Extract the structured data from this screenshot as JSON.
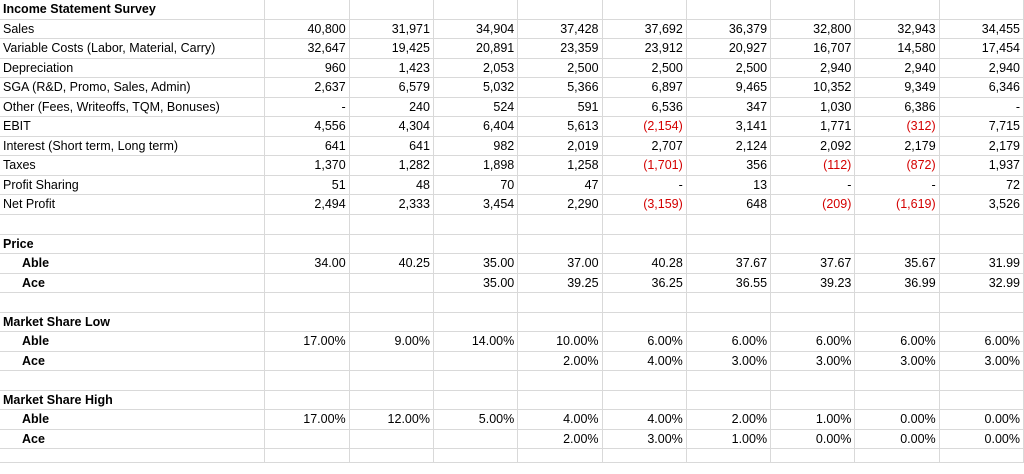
{
  "title": "Income Statement Survey",
  "colors": {
    "negative": "#d40000",
    "gridline": "#d9d9d9"
  },
  "income_rows": [
    {
      "label": "Sales",
      "values": [
        "40,800",
        "31,971",
        "34,904",
        "37,428",
        "37,692",
        "36,379",
        "32,800",
        "32,943",
        "34,455"
      ]
    },
    {
      "label": "Variable Costs (Labor, Material, Carry)",
      "values": [
        "32,647",
        "19,425",
        "20,891",
        "23,359",
        "23,912",
        "20,927",
        "16,707",
        "14,580",
        "17,454"
      ]
    },
    {
      "label": "Depreciation",
      "values": [
        "960",
        "1,423",
        "2,053",
        "2,500",
        "2,500",
        "2,500",
        "2,940",
        "2,940",
        "2,940"
      ]
    },
    {
      "label": "SGA (R&D, Promo, Sales, Admin)",
      "values": [
        "2,637",
        "6,579",
        "5,032",
        "5,366",
        "6,897",
        "9,465",
        "10,352",
        "9,349",
        "6,346"
      ]
    },
    {
      "label": "Other (Fees, Writeoffs, TQM, Bonuses)",
      "values": [
        "-",
        "240",
        "524",
        "591",
        "6,536",
        "347",
        "1,030",
        "6,386",
        "-"
      ]
    },
    {
      "label": "EBIT",
      "values": [
        "4,556",
        "4,304",
        "6,404",
        "5,613",
        "(2,154)",
        "3,141",
        "1,771",
        "(312)",
        "7,715"
      ]
    },
    {
      "label": "Interest (Short term, Long term)",
      "values": [
        "641",
        "641",
        "982",
        "2,019",
        "2,707",
        "2,124",
        "2,092",
        "2,179",
        "2,179"
      ]
    },
    {
      "label": "Taxes",
      "values": [
        "1,370",
        "1,282",
        "1,898",
        "1,258",
        "(1,701)",
        "356",
        "(112)",
        "(872)",
        "1,937"
      ]
    },
    {
      "label": "Profit Sharing",
      "values": [
        "51",
        "48",
        "70",
        "47",
        "-",
        "13",
        "-",
        "-",
        "72"
      ]
    },
    {
      "label": "Net Profit",
      "values": [
        "2,494",
        "2,333",
        "3,454",
        "2,290",
        "(3,159)",
        "648",
        "(209)",
        "(1,619)",
        "3,526"
      ]
    }
  ],
  "price": {
    "header": "Price",
    "rows": [
      {
        "label": "Able",
        "values": [
          "34.00",
          "40.25",
          "35.00",
          "37.00",
          "40.28",
          "37.67",
          "37.67",
          "35.67",
          "31.99"
        ]
      },
      {
        "label": "Ace",
        "values": [
          "",
          "",
          "35.00",
          "39.25",
          "36.25",
          "36.55",
          "39.23",
          "36.99",
          "32.99"
        ]
      }
    ]
  },
  "market_share_low": {
    "header": "Market Share Low",
    "rows": [
      {
        "label": "Able",
        "values": [
          "17.00%",
          "9.00%",
          "14.00%",
          "10.00%",
          "6.00%",
          "6.00%",
          "6.00%",
          "6.00%",
          "6.00%"
        ]
      },
      {
        "label": "Ace",
        "values": [
          "",
          "",
          "",
          "2.00%",
          "4.00%",
          "3.00%",
          "3.00%",
          "3.00%",
          "3.00%"
        ]
      }
    ]
  },
  "market_share_high": {
    "header": "Market Share High",
    "rows": [
      {
        "label": "Able",
        "values": [
          "17.00%",
          "12.00%",
          "5.00%",
          "4.00%",
          "4.00%",
          "2.00%",
          "1.00%",
          "0.00%",
          "0.00%"
        ]
      },
      {
        "label": "Ace",
        "values": [
          "",
          "",
          "",
          "2.00%",
          "3.00%",
          "1.00%",
          "0.00%",
          "0.00%",
          "0.00%"
        ]
      }
    ]
  }
}
